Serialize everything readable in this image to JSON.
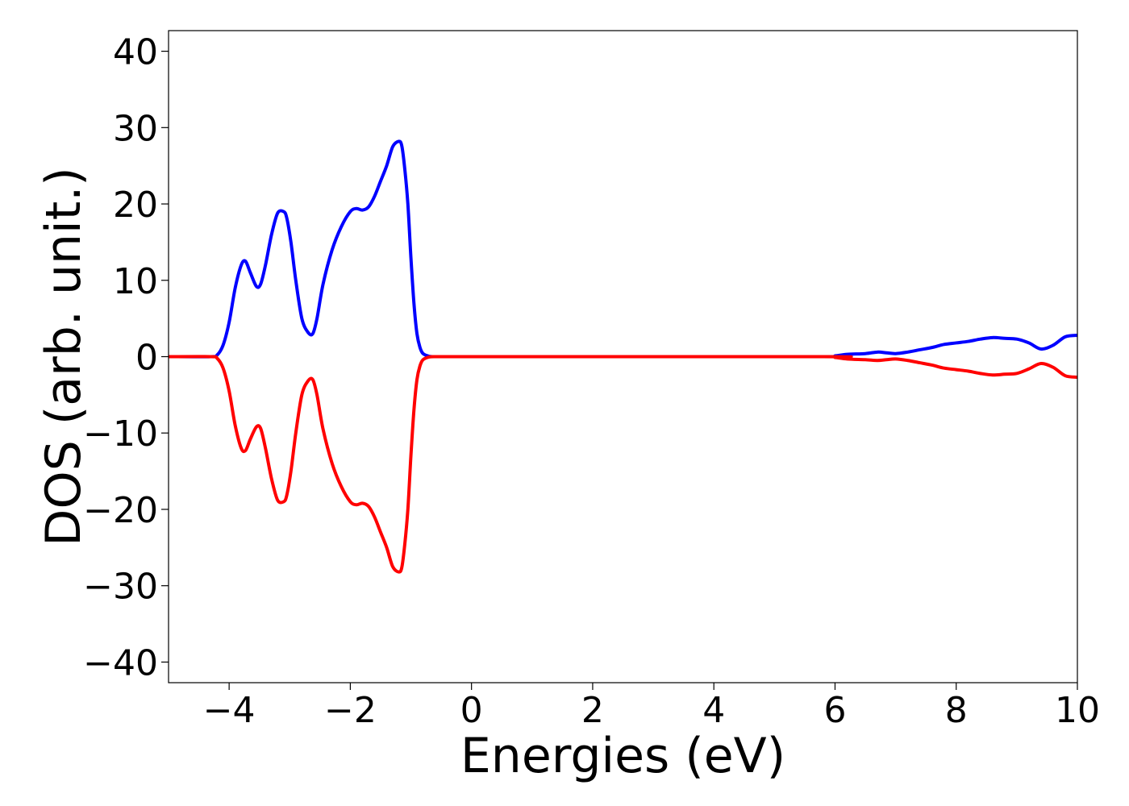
{
  "chart_data": {
    "type": "line",
    "title": "",
    "xlabel": "Energies (eV)",
    "ylabel": "DOS (arb. unit.)",
    "xlim": [
      -5,
      10
    ],
    "ylim": [
      -42.7,
      42.7
    ],
    "xticks": [
      -4,
      -2,
      0,
      2,
      4,
      6,
      8,
      10
    ],
    "xtick_labels": [
      "−4",
      "−2",
      "0",
      "2",
      "4",
      "6",
      "8",
      "10"
    ],
    "yticks": [
      40,
      30,
      20,
      10,
      0,
      -10,
      -20,
      -30,
      -40
    ],
    "ytick_labels": [
      "40",
      "30",
      "20",
      "10",
      "0",
      "−10",
      "−20",
      "−30",
      "−40"
    ],
    "grid": false,
    "legend": "none",
    "series": [
      {
        "color": "#0000ff",
        "x": [
          -5.0,
          -4.3,
          -4.2,
          -4.1,
          -4.0,
          -3.9,
          -3.8,
          -3.73,
          -3.65,
          -3.55,
          -3.48,
          -3.4,
          -3.3,
          -3.2,
          -3.1,
          -3.05,
          -2.98,
          -2.9,
          -2.8,
          -2.7,
          -2.62,
          -2.55,
          -2.45,
          -2.3,
          -2.15,
          -2.0,
          -1.9,
          -1.8,
          -1.7,
          -1.6,
          -1.5,
          -1.4,
          -1.3,
          -1.2,
          -1.15,
          -1.1,
          -1.05,
          -1.0,
          -0.95,
          -0.9,
          -0.85,
          -0.8,
          -0.7,
          -0.6,
          -0.5,
          0.0,
          5.8,
          6.0,
          6.2,
          6.5,
          6.7,
          6.85,
          7.0,
          7.2,
          7.4,
          7.6,
          7.8,
          8.0,
          8.2,
          8.4,
          8.6,
          8.8,
          9.0,
          9.2,
          9.4,
          9.6,
          9.8,
          10.0
        ],
        "y": [
          0.0,
          0.0,
          0.2,
          1.5,
          4.5,
          9.0,
          12.0,
          12.5,
          11.0,
          9.2,
          9.5,
          12.0,
          16.0,
          18.8,
          19.0,
          18.2,
          15.0,
          10.0,
          5.0,
          3.2,
          3.0,
          5.0,
          9.5,
          14.0,
          17.0,
          19.0,
          19.4,
          19.2,
          19.6,
          21.0,
          23.0,
          25.0,
          27.5,
          28.2,
          27.6,
          24.5,
          20.0,
          13.0,
          7.0,
          3.0,
          1.2,
          0.4,
          0.05,
          0.0,
          0.0,
          0.0,
          0.0,
          0.1,
          0.3,
          0.4,
          0.6,
          0.5,
          0.4,
          0.6,
          0.9,
          1.2,
          1.6,
          1.8,
          2.0,
          2.3,
          2.5,
          2.4,
          2.3,
          1.8,
          1.0,
          1.5,
          2.6,
          2.8
        ]
      },
      {
        "color": "#ff0000",
        "x": [
          -5.0,
          -4.3,
          -4.2,
          -4.1,
          -4.0,
          -3.9,
          -3.8,
          -3.73,
          -3.65,
          -3.55,
          -3.48,
          -3.4,
          -3.3,
          -3.2,
          -3.1,
          -3.05,
          -2.98,
          -2.9,
          -2.8,
          -2.7,
          -2.62,
          -2.55,
          -2.45,
          -2.3,
          -2.15,
          -2.0,
          -1.9,
          -1.8,
          -1.7,
          -1.6,
          -1.5,
          -1.4,
          -1.3,
          -1.2,
          -1.15,
          -1.1,
          -1.05,
          -1.0,
          -0.95,
          -0.9,
          -0.85,
          -0.8,
          -0.7,
          -0.6,
          -0.5,
          0.0,
          5.8,
          6.0,
          6.2,
          6.5,
          6.7,
          6.85,
          7.0,
          7.2,
          7.4,
          7.6,
          7.8,
          8.0,
          8.2,
          8.4,
          8.6,
          8.8,
          9.0,
          9.2,
          9.4,
          9.6,
          9.8,
          10.0
        ],
        "y": [
          0.0,
          0.0,
          -0.2,
          -1.5,
          -4.5,
          -9.0,
          -12.0,
          -12.3,
          -10.8,
          -9.2,
          -9.4,
          -12.0,
          -16.0,
          -18.8,
          -19.0,
          -18.2,
          -15.0,
          -10.0,
          -5.0,
          -3.2,
          -3.0,
          -5.0,
          -9.5,
          -14.0,
          -17.0,
          -19.0,
          -19.4,
          -19.2,
          -19.6,
          -21.0,
          -23.0,
          -25.0,
          -27.5,
          -28.2,
          -27.6,
          -24.5,
          -20.0,
          -13.0,
          -7.0,
          -3.0,
          -1.2,
          -0.4,
          -0.05,
          0.0,
          0.0,
          0.0,
          0.0,
          -0.1,
          -0.3,
          -0.4,
          -0.5,
          -0.4,
          -0.3,
          -0.5,
          -0.8,
          -1.1,
          -1.5,
          -1.7,
          -1.9,
          -2.2,
          -2.4,
          -2.3,
          -2.2,
          -1.6,
          -0.9,
          -1.4,
          -2.5,
          -2.7
        ]
      }
    ]
  }
}
